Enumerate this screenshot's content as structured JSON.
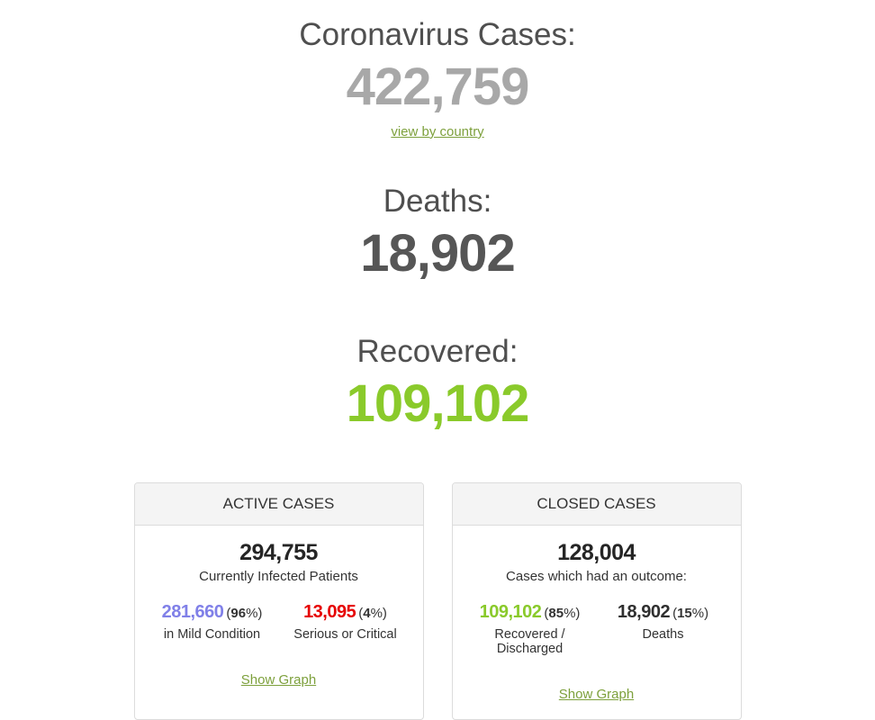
{
  "colors": {
    "heading_gray": "#4f4f4f",
    "cases_number_gray": "#a8a8a8",
    "deaths_number_gray": "#565656",
    "recovered_green": "#8aca2b",
    "link_green": "#7da03c",
    "mild_purple": "#8080e8",
    "serious_red": "#e60000",
    "panel_border": "#dcdcdc",
    "panel_heading_bg": "#f4f4f4"
  },
  "labels": {
    "pct_open": "(",
    "pct_close": "%)"
  },
  "summary": {
    "cases": {
      "title": "Coronavirus Cases:",
      "value": "422,759",
      "link": "view by country"
    },
    "deaths": {
      "title": "Deaths:",
      "value": "18,902"
    },
    "recovered": {
      "title": "Recovered:",
      "value": "109,102"
    }
  },
  "active_cases": {
    "title": "ACTIVE CASES",
    "total": "294,755",
    "total_caption": "Currently Infected Patients",
    "mild": {
      "value": "281,660",
      "pct": "96",
      "label": "in Mild Condition"
    },
    "serious": {
      "value": "13,095",
      "pct": "4",
      "label": "Serious or Critical"
    },
    "link": "Show Graph"
  },
  "closed_cases": {
    "title": "CLOSED CASES",
    "total": "128,004",
    "total_caption": "Cases which had an outcome:",
    "recovered": {
      "value": "109,102",
      "pct": "85",
      "label": "Recovered / Discharged"
    },
    "deaths": {
      "value": "18,902",
      "pct": "15",
      "label": "Deaths"
    },
    "link": "Show Graph"
  }
}
